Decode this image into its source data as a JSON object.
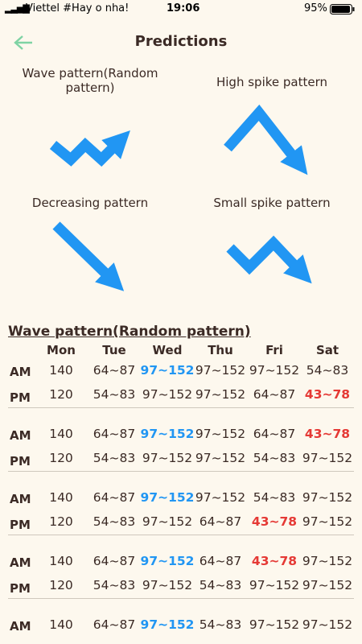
{
  "status_bar": {
    "carrier": "Viettel #Hay o nha!",
    "time": "19:06",
    "battery": "95%"
  },
  "header": {
    "title": "Predictions"
  },
  "patterns": [
    {
      "label": "Wave pattern(Random pattern)"
    },
    {
      "label": "High spike pattern"
    },
    {
      "label": "Decreasing pattern"
    },
    {
      "label": "Small spike pattern"
    }
  ],
  "table": {
    "title": "Wave pattern(Random pattern)",
    "days": [
      "Mon",
      "Tue",
      "Wed",
      "Thu",
      "Fri",
      "Sat"
    ],
    "groups": [
      {
        "rows": [
          {
            "label": "AM",
            "cells": [
              "140",
              "64~87",
              {
                "text": "97~152",
                "color": "#2196f3"
              },
              "97~152",
              "97~152",
              "54~83"
            ]
          },
          {
            "label": "PM",
            "cells": [
              "120",
              "54~83",
              "97~152",
              "97~152",
              "64~87",
              {
                "text": "43~78",
                "color": "#e53935"
              }
            ]
          }
        ]
      },
      {
        "rows": [
          {
            "label": "AM",
            "cells": [
              "140",
              "64~87",
              {
                "text": "97~152",
                "color": "#2196f3"
              },
              "97~152",
              "64~87",
              {
                "text": "43~78",
                "color": "#e53935"
              }
            ]
          },
          {
            "label": "PM",
            "cells": [
              "120",
              "54~83",
              "97~152",
              "97~152",
              "54~83",
              "97~152"
            ]
          }
        ]
      },
      {
        "rows": [
          {
            "label": "AM",
            "cells": [
              "140",
              "64~87",
              {
                "text": "97~152",
                "color": "#2196f3"
              },
              "97~152",
              "54~83",
              "97~152"
            ]
          },
          {
            "label": "PM",
            "cells": [
              "120",
              "54~83",
              "97~152",
              "64~87",
              {
                "text": "43~78",
                "color": "#e53935"
              },
              "97~152"
            ]
          }
        ]
      },
      {
        "rows": [
          {
            "label": "AM",
            "cells": [
              "140",
              "64~87",
              {
                "text": "97~152",
                "color": "#2196f3"
              },
              "64~87",
              {
                "text": "43~78",
                "color": "#e53935"
              },
              "97~152"
            ]
          },
          {
            "label": "PM",
            "cells": [
              "120",
              "54~83",
              "97~152",
              "54~83",
              "97~152",
              "97~152"
            ]
          }
        ]
      },
      {
        "rows": [
          {
            "label": "AM",
            "cells": [
              "140",
              "64~87",
              {
                "text": "97~152",
                "color": "#2196f3"
              },
              "54~83",
              "97~152",
              "97~152"
            ]
          }
        ]
      }
    ]
  }
}
